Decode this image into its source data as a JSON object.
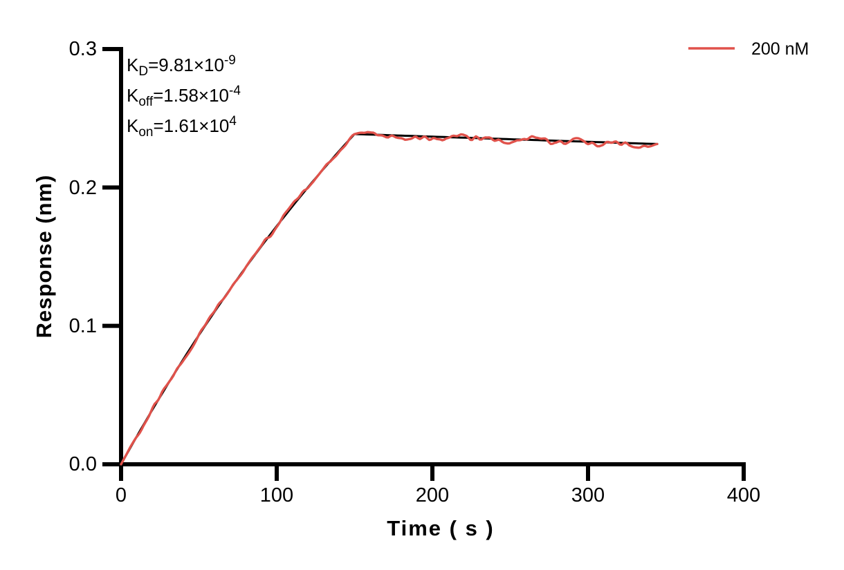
{
  "chart_data": {
    "type": "line",
    "title": "",
    "xlabel": "Time ( s )",
    "ylabel": "Response (nm)",
    "xlim": [
      0,
      400
    ],
    "ylim": [
      0.0,
      0.3
    ],
    "xticks": [
      0,
      100,
      200,
      300,
      400
    ],
    "xtick_labels": [
      "0",
      "100",
      "200",
      "300",
      "400"
    ],
    "yticks": [
      0.0,
      0.1,
      0.2,
      0.3
    ],
    "ytick_labels": [
      "0.0",
      "0.1",
      "0.2",
      "0.3"
    ],
    "grid": false,
    "legend_position": "top-right",
    "legend": [
      {
        "label": "200 nM",
        "color": "#E0524B"
      }
    ],
    "annotations": [
      {
        "base": "K",
        "sub": "D",
        "mid": "=9.81×10",
        "sup": "-9"
      },
      {
        "base": "K",
        "sub": "off",
        "mid": "=1.58×10",
        "sup": "-4"
      },
      {
        "base": "K",
        "sub": "on",
        "mid": "=1.61×10",
        "sup": "4"
      }
    ],
    "series": [
      {
        "name": "200 nM measured",
        "color": "#E0524B",
        "style": "noisy",
        "model": {
          "assoc_end_s": 150,
          "end_s": 345,
          "r_peak_nm": 0.2386,
          "kobs_per_s": 0.003378,
          "koff_per_s": 0.000158,
          "noise_amp_nm": 0.0026
        }
      },
      {
        "name": "fit",
        "color": "#000000",
        "style": "smooth",
        "points": [
          [
            0,
            0
          ],
          [
            10,
            0.0199
          ],
          [
            20,
            0.0392
          ],
          [
            30,
            0.0578
          ],
          [
            40,
            0.0758
          ],
          [
            50,
            0.0933
          ],
          [
            60,
            0.1101
          ],
          [
            70,
            0.1264
          ],
          [
            80,
            0.1421
          ],
          [
            90,
            0.1573
          ],
          [
            100,
            0.172
          ],
          [
            110,
            0.1862
          ],
          [
            120,
            0.2
          ],
          [
            130,
            0.2133
          ],
          [
            140,
            0.2261
          ],
          [
            150,
            0.2385
          ],
          [
            160,
            0.2382
          ],
          [
            170,
            0.2378
          ],
          [
            180,
            0.2374
          ],
          [
            190,
            0.237
          ],
          [
            200,
            0.2367
          ],
          [
            210,
            0.2363
          ],
          [
            220,
            0.2359
          ],
          [
            230,
            0.2355
          ],
          [
            240,
            0.2352
          ],
          [
            250,
            0.2348
          ],
          [
            260,
            0.2344
          ],
          [
            270,
            0.234
          ],
          [
            280,
            0.2337
          ],
          [
            290,
            0.2333
          ],
          [
            300,
            0.2329
          ],
          [
            310,
            0.2326
          ],
          [
            320,
            0.2322
          ],
          [
            330,
            0.2318
          ],
          [
            340,
            0.2315
          ],
          [
            345,
            0.2313
          ]
        ]
      }
    ]
  }
}
